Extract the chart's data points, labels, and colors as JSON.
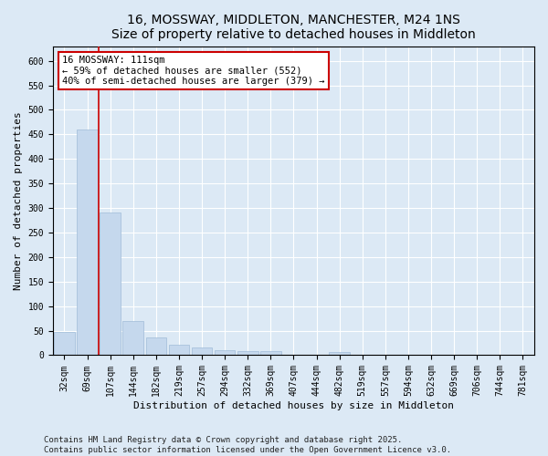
{
  "title1": "16, MOSSWAY, MIDDLETON, MANCHESTER, M24 1NS",
  "title2": "Size of property relative to detached houses in Middleton",
  "xlabel": "Distribution of detached houses by size in Middleton",
  "ylabel": "Number of detached properties",
  "categories": [
    "32sqm",
    "69sqm",
    "107sqm",
    "144sqm",
    "182sqm",
    "219sqm",
    "257sqm",
    "294sqm",
    "332sqm",
    "369sqm",
    "407sqm",
    "444sqm",
    "482sqm",
    "519sqm",
    "557sqm",
    "594sqm",
    "632sqm",
    "669sqm",
    "706sqm",
    "744sqm",
    "781sqm"
  ],
  "values": [
    47,
    460,
    290,
    70,
    37,
    22,
    15,
    10,
    8,
    8,
    0,
    0,
    7,
    0,
    0,
    0,
    0,
    0,
    0,
    0,
    0
  ],
  "bar_color": "#c5d8ed",
  "bar_edge_color": "#a0bcd8",
  "vline_x": 1.5,
  "vline_color": "#cc0000",
  "annotation_text": "16 MOSSWAY: 111sqm\n← 59% of detached houses are smaller (552)\n40% of semi-detached houses are larger (379) →",
  "annotation_box_color": "#ffffff",
  "annotation_box_edge": "#cc0000",
  "ylim": [
    0,
    630
  ],
  "yticks": [
    0,
    50,
    100,
    150,
    200,
    250,
    300,
    350,
    400,
    450,
    500,
    550,
    600
  ],
  "background_color": "#dce9f5",
  "plot_bg_color": "#dce9f5",
  "footer": "Contains HM Land Registry data © Crown copyright and database right 2025.\nContains public sector information licensed under the Open Government Licence v3.0.",
  "title_fontsize": 10,
  "axis_label_fontsize": 8,
  "tick_fontsize": 7,
  "annotation_fontsize": 7.5,
  "footer_fontsize": 6.5
}
